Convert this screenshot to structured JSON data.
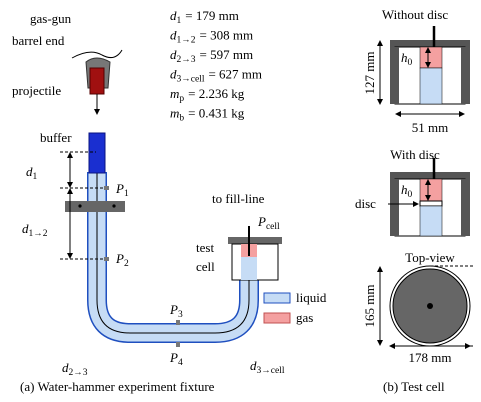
{
  "fixture": {
    "gas_gun": "gas-gun",
    "barrel_end": "barrel end",
    "projectile": "projectile",
    "buffer": "buffer",
    "parameters": [
      {
        "symbol": "d",
        "sub": "1",
        "rest": "= 179 mm"
      },
      {
        "symbol": "d",
        "sub": "1→2",
        "rest": "= 308 mm"
      },
      {
        "symbol": "d",
        "sub": "2→3",
        "rest": "= 597 mm"
      },
      {
        "symbol": "d",
        "sub": "3→cell",
        "rest": "= 627 mm"
      },
      {
        "symbol": "m",
        "sub": "p",
        "rest": "= 2.236 kg"
      },
      {
        "symbol": "m",
        "sub": "b",
        "rest": "= 0.431 kg"
      }
    ],
    "distances": {
      "d1": {
        "symbol": "d",
        "sub": "1"
      },
      "d12": {
        "symbol": "d",
        "sub": "1→2"
      },
      "d23": {
        "symbol": "d",
        "sub": "2→3"
      },
      "d3cell": {
        "symbol": "d",
        "sub": "3→cell"
      }
    },
    "sensors": {
      "p1": {
        "symbol": "P",
        "sub": "1"
      },
      "p2": {
        "symbol": "P",
        "sub": "2"
      },
      "p3": {
        "symbol": "P",
        "sub": "3"
      },
      "p4": {
        "symbol": "P",
        "sub": "4"
      },
      "pcell": {
        "symbol": "P",
        "sub": "cell"
      }
    },
    "fill_line": "to fill-line",
    "test_cell": [
      "test",
      "cell"
    ],
    "legend": {
      "liquid": "liquid",
      "gas": "gas"
    },
    "caption": "(a) Water-hammer experiment fixture"
  },
  "test_cell": {
    "without_disc": "Without disc",
    "with_disc": "With disc",
    "height": "127 mm",
    "width": "51 mm",
    "h0_a": {
      "symbol": "h",
      "sub": "0"
    },
    "h0_b": {
      "symbol": "h",
      "sub": "0"
    },
    "disc": "disc",
    "top_view": "Top-view",
    "top_height": "165 mm",
    "top_width": "178 mm",
    "caption": "(b) Test cell"
  }
}
